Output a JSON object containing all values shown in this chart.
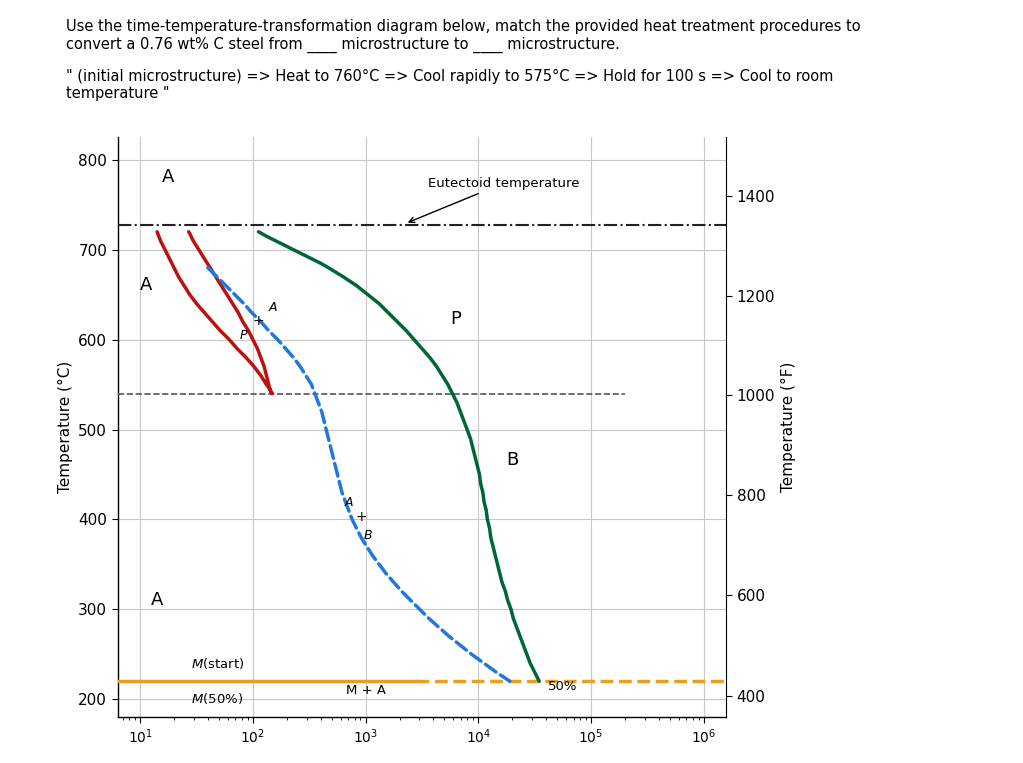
{
  "title_line1": "Use the time-temperature-transformation diagram below, match the provided heat treatment procedures to",
  "title_line2": "convert a 0.76 wt% C steel from ____ microstructure to ____ microstructure.",
  "subtitle_line1": "\" (initial microstructure) => Heat to 760°C => Cool rapidly to 575°C => Hold for 100 s => Cool to room",
  "subtitle_line2": "temperature \"",
  "ylabel_left": "Temperature (°C)",
  "ylabel_right": "Temperature (°F)",
  "yticks_left": [
    200,
    300,
    400,
    500,
    600,
    700,
    800
  ],
  "yticks_right_vals": [
    400,
    600,
    800,
    1000,
    1200,
    1400
  ],
  "yticks_right_pos_C": [
    204,
    316,
    427,
    538,
    649,
    760
  ],
  "eutectoid_temp": 727,
  "mstart_temp": 220,
  "background": "#ffffff",
  "grid_color": "#c8c8c8",
  "eutectoid_color": "#222222",
  "mstart_color": "#E8A020",
  "red_color": "#bb1111",
  "green_color": "#006633",
  "blue_color": "#2277dd",
  "dashed550_color": "#555555",
  "red_curve_T": [
    720,
    710,
    700,
    690,
    680,
    670,
    660,
    650,
    640,
    630,
    620,
    610,
    600,
    590,
    580,
    570,
    560,
    550,
    545,
    542,
    540,
    542,
    545,
    550,
    560,
    570,
    580,
    590,
    600,
    610,
    620,
    630,
    640,
    650,
    660,
    670,
    680,
    690,
    700,
    710,
    718,
    720
  ],
  "red_curve_logt": [
    1.15,
    1.18,
    1.22,
    1.26,
    1.3,
    1.34,
    1.39,
    1.44,
    1.5,
    1.57,
    1.64,
    1.71,
    1.79,
    1.86,
    1.94,
    2.01,
    2.07,
    2.12,
    2.15,
    2.16,
    2.17,
    2.16,
    2.15,
    2.14,
    2.12,
    2.1,
    2.07,
    2.04,
    2.0,
    1.96,
    1.91,
    1.87,
    1.82,
    1.77,
    1.72,
    1.67,
    1.62,
    1.57,
    1.52,
    1.47,
    1.44,
    1.43
  ],
  "green_curve_T": [
    720,
    715,
    710,
    705,
    700,
    695,
    690,
    685,
    680,
    670,
    660,
    650,
    640,
    630,
    620,
    610,
    600,
    590,
    580,
    570,
    560,
    550,
    540,
    530,
    520,
    510,
    500,
    490,
    480,
    470,
    460,
    450,
    440,
    430,
    420,
    410,
    400,
    390,
    380,
    370,
    360,
    350,
    340,
    330,
    320,
    310,
    300,
    290,
    280,
    270,
    260,
    250,
    240,
    230,
    220
  ],
  "green_curve_logt": [
    2.05,
    2.12,
    2.2,
    2.28,
    2.36,
    2.44,
    2.52,
    2.6,
    2.67,
    2.8,
    2.92,
    3.02,
    3.12,
    3.2,
    3.28,
    3.36,
    3.43,
    3.5,
    3.57,
    3.63,
    3.68,
    3.73,
    3.77,
    3.81,
    3.84,
    3.87,
    3.9,
    3.93,
    3.95,
    3.97,
    3.99,
    4.01,
    4.02,
    4.04,
    4.05,
    4.07,
    4.08,
    4.1,
    4.11,
    4.13,
    4.15,
    4.17,
    4.19,
    4.21,
    4.24,
    4.26,
    4.29,
    4.31,
    4.34,
    4.37,
    4.4,
    4.43,
    4.46,
    4.5,
    4.54
  ],
  "blue_curve_T": [
    680,
    670,
    660,
    650,
    640,
    630,
    620,
    610,
    600,
    590,
    580,
    570,
    560,
    550,
    540,
    530,
    520,
    510,
    500,
    490,
    480,
    470,
    460,
    450,
    440,
    430,
    420,
    410,
    400,
    390,
    380,
    370,
    360,
    350,
    340,
    330,
    320,
    310,
    300,
    290,
    280,
    270,
    260,
    250,
    240,
    230,
    220
  ],
  "blue_curve_logt": [
    1.6,
    1.68,
    1.76,
    1.84,
    1.92,
    1.99,
    2.07,
    2.14,
    2.22,
    2.29,
    2.36,
    2.42,
    2.47,
    2.52,
    2.55,
    2.58,
    2.61,
    2.63,
    2.65,
    2.67,
    2.69,
    2.71,
    2.73,
    2.75,
    2.77,
    2.79,
    2.82,
    2.85,
    2.88,
    2.92,
    2.96,
    3.01,
    3.06,
    3.12,
    3.18,
    3.25,
    3.32,
    3.4,
    3.48,
    3.56,
    3.65,
    3.74,
    3.84,
    3.94,
    4.05,
    4.16,
    4.28
  ],
  "xlog_min": 0.8,
  "xlog_max": 6.2,
  "ymin": 180,
  "ymax": 825
}
